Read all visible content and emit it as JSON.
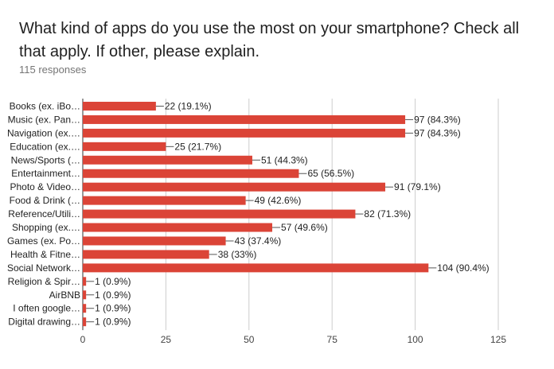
{
  "question": "What kind of apps do you use the most on your smartphone? Check all that apply. If other, please explain.",
  "responses_label": "115 responses",
  "chart_data": {
    "type": "bar",
    "orientation": "horizontal",
    "bar_color": "#db4437",
    "categories": [
      "Books (ex. iBo…",
      "Music (ex. Pan…",
      "Navigation (ex.…",
      "Education (ex.…",
      "News/Sports (…",
      "Entertainment…",
      "Photo & Video…",
      "Food & Drink (…",
      "Reference/Utili…",
      "Shopping (ex.…",
      "Games (ex. Po…",
      "Health & Fitne…",
      "Social Network…",
      "Religion & Spir…",
      "AirBNB",
      "I often google…",
      "Digital drawing…"
    ],
    "values": [
      22,
      97,
      97,
      25,
      51,
      65,
      91,
      49,
      82,
      57,
      43,
      38,
      104,
      1,
      1,
      1,
      1
    ],
    "value_labels": [
      "22 (19.1%)",
      "97 (84.3%)",
      "97 (84.3%)",
      "25 (21.7%)",
      "51 (44.3%)",
      "65 (56.5%)",
      "91 (79.1%)",
      "49 (42.6%)",
      "82 (71.3%)",
      "57 (49.6%)",
      "43 (37.4%)",
      "38 (33%)",
      "104 (90.4%)",
      "1 (0.9%)",
      "1 (0.9%)",
      "1 (0.9%)",
      "1 (0.9%)"
    ],
    "xlim": [
      0,
      125
    ],
    "xticks": [
      0,
      25,
      50,
      75,
      100,
      125
    ],
    "xtick_labels": [
      "0",
      "25",
      "50",
      "75",
      "100",
      "125"
    ],
    "grid": true,
    "legend": "none"
  }
}
